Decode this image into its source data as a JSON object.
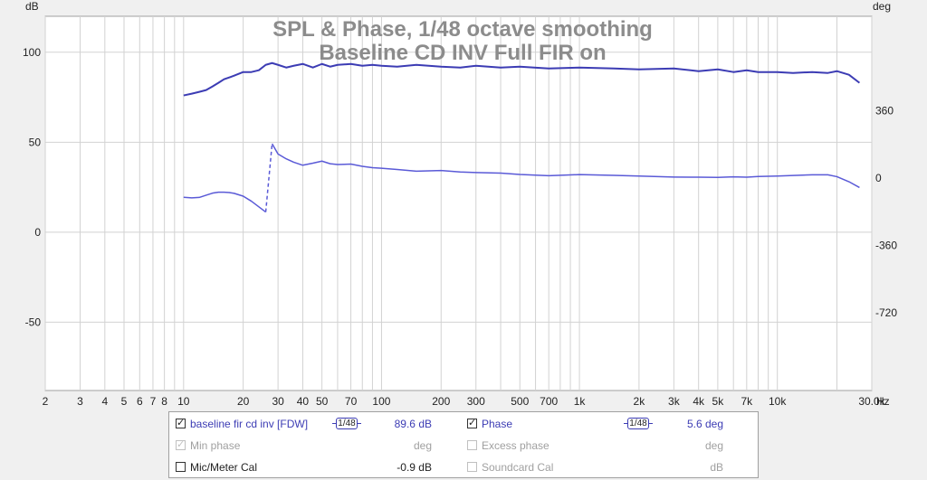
{
  "chart_data": {
    "type": "line",
    "title": "SPL & Phase, 1/48 octave smoothing",
    "subtitle": "Baseline CD INV Full FIR on",
    "y_left_label": "dB",
    "y_right_label": "deg",
    "x_unit_label": "Hz",
    "x_scale": "log",
    "xlim": [
      2,
      30000
    ],
    "ylim_left": [
      -88,
      120
    ],
    "ylim_right": [
      -1134.72,
      863.28
    ],
    "grid": true,
    "x_ticks": [
      {
        "v": 2,
        "label": "2"
      },
      {
        "v": 3,
        "label": "3"
      },
      {
        "v": 4,
        "label": "4"
      },
      {
        "v": 5,
        "label": "5"
      },
      {
        "v": 6,
        "label": "6"
      },
      {
        "v": 7,
        "label": "7"
      },
      {
        "v": 8,
        "label": "8"
      },
      {
        "v": 10,
        "label": "10"
      },
      {
        "v": 20,
        "label": "20"
      },
      {
        "v": 30,
        "label": "30"
      },
      {
        "v": 40,
        "label": "40"
      },
      {
        "v": 50,
        "label": "50"
      },
      {
        "v": 70,
        "label": "70"
      },
      {
        "v": 100,
        "label": "100"
      },
      {
        "v": 200,
        "label": "200"
      },
      {
        "v": 300,
        "label": "300"
      },
      {
        "v": 500,
        "label": "500"
      },
      {
        "v": 700,
        "label": "700"
      },
      {
        "v": 1000,
        "label": "1k"
      },
      {
        "v": 2000,
        "label": "2k"
      },
      {
        "v": 3000,
        "label": "3k"
      },
      {
        "v": 4000,
        "label": "4k"
      },
      {
        "v": 5000,
        "label": "5k"
      },
      {
        "v": 7000,
        "label": "7k"
      },
      {
        "v": 10000,
        "label": "10k"
      },
      {
        "v": 30000,
        "label": "30.0k"
      }
    ],
    "y_ticks_left": [
      {
        "v": 100,
        "label": "100"
      },
      {
        "v": 50,
        "label": "50"
      },
      {
        "v": 0,
        "label": "0"
      },
      {
        "v": -50,
        "label": "-50"
      }
    ],
    "y_ticks_right": [
      {
        "v": 360,
        "label": "360"
      },
      {
        "v": 0,
        "label": "0"
      },
      {
        "v": -360,
        "label": "-360"
      },
      {
        "v": -720,
        "label": "-720"
      }
    ],
    "series": [
      {
        "name": "baseline fir cd inv [FDW]",
        "axis": "left",
        "color": "#3c3cb4",
        "width": 2,
        "x": [
          10,
          11,
          12,
          13,
          14,
          15,
          16,
          17,
          18,
          20,
          22,
          24,
          26,
          28,
          30,
          33,
          36,
          40,
          45,
          50,
          55,
          60,
          70,
          80,
          90,
          100,
          120,
          150,
          200,
          250,
          300,
          400,
          500,
          700,
          1000,
          1500,
          2000,
          3000,
          4000,
          5000,
          6000,
          7000,
          8000,
          10000,
          12000,
          15000,
          18000,
          20000,
          23000,
          26000
        ],
        "y": [
          76,
          77,
          78,
          79,
          81,
          83,
          85,
          86,
          87,
          89,
          89,
          90,
          93,
          94,
          93,
          91.5,
          92.5,
          93.5,
          91.5,
          93.5,
          92,
          93,
          93.5,
          92.5,
          93,
          92.5,
          92,
          93,
          92,
          91.5,
          92.5,
          91.5,
          92,
          91,
          91.5,
          91,
          90.5,
          91,
          89.5,
          90.5,
          89,
          90,
          89,
          89,
          88.5,
          89,
          88.5,
          89.5,
          87.5,
          83
        ]
      },
      {
        "name": "Phase",
        "axis": "right",
        "color": "#5a5ad7",
        "width": 1.5,
        "x": [
          10,
          11,
          12,
          13,
          14,
          15,
          16,
          17,
          18,
          20,
          22,
          24,
          26,
          28,
          30,
          33,
          36,
          40,
          45,
          50,
          55,
          60,
          70,
          80,
          90,
          100,
          120,
          150,
          200,
          250,
          300,
          400,
          500,
          700,
          1000,
          1500,
          2000,
          3000,
          4000,
          5000,
          6000,
          7000,
          8000,
          10000,
          12000,
          15000,
          18000,
          20000,
          23000,
          26000
        ],
        "y": [
          -103,
          -106,
          -104,
          -92,
          -81,
          -76,
          -76,
          -78,
          -82,
          -97,
          -124,
          -154,
          -182,
          183,
          128,
          102,
          84,
          68,
          79,
          90,
          76,
          72,
          74,
          62,
          55,
          52,
          45,
          36,
          40,
          32,
          29,
          26,
          19,
          12,
          18,
          14,
          10,
          5,
          4,
          3,
          6,
          4,
          8,
          10,
          13,
          17,
          17,
          7,
          -20,
          -51
        ]
      }
    ],
    "discontinuity_dashed": {
      "series": 0,
      "index": 12
    }
  },
  "legend": {
    "rows": [
      {
        "left": {
          "label": "baseline fir cd inv [FDW]",
          "checked": true,
          "enabled": true,
          "smoothing": "1/48",
          "value": "89.6 dB",
          "color": "#3c3cb4"
        },
        "right": {
          "label": "Phase",
          "checked": true,
          "enabled": true,
          "smoothing": "1/48",
          "value": "5.6 deg",
          "color": "#3c3cb4"
        }
      },
      {
        "left": {
          "label": "Min phase",
          "checked": true,
          "enabled": false,
          "value": "deg",
          "color": "#a0a0a0"
        },
        "right": {
          "label": "Excess phase",
          "checked": false,
          "enabled": false,
          "value": "deg",
          "color": "#a0a0a0"
        }
      },
      {
        "left": {
          "label": "Mic/Meter Cal",
          "checked": false,
          "enabled": true,
          "value": "-0.9 dB",
          "color": "#222222"
        },
        "right": {
          "label": "Soundcard Cal",
          "checked": false,
          "enabled": false,
          "value": "dB",
          "color": "#a0a0a0"
        }
      }
    ]
  }
}
